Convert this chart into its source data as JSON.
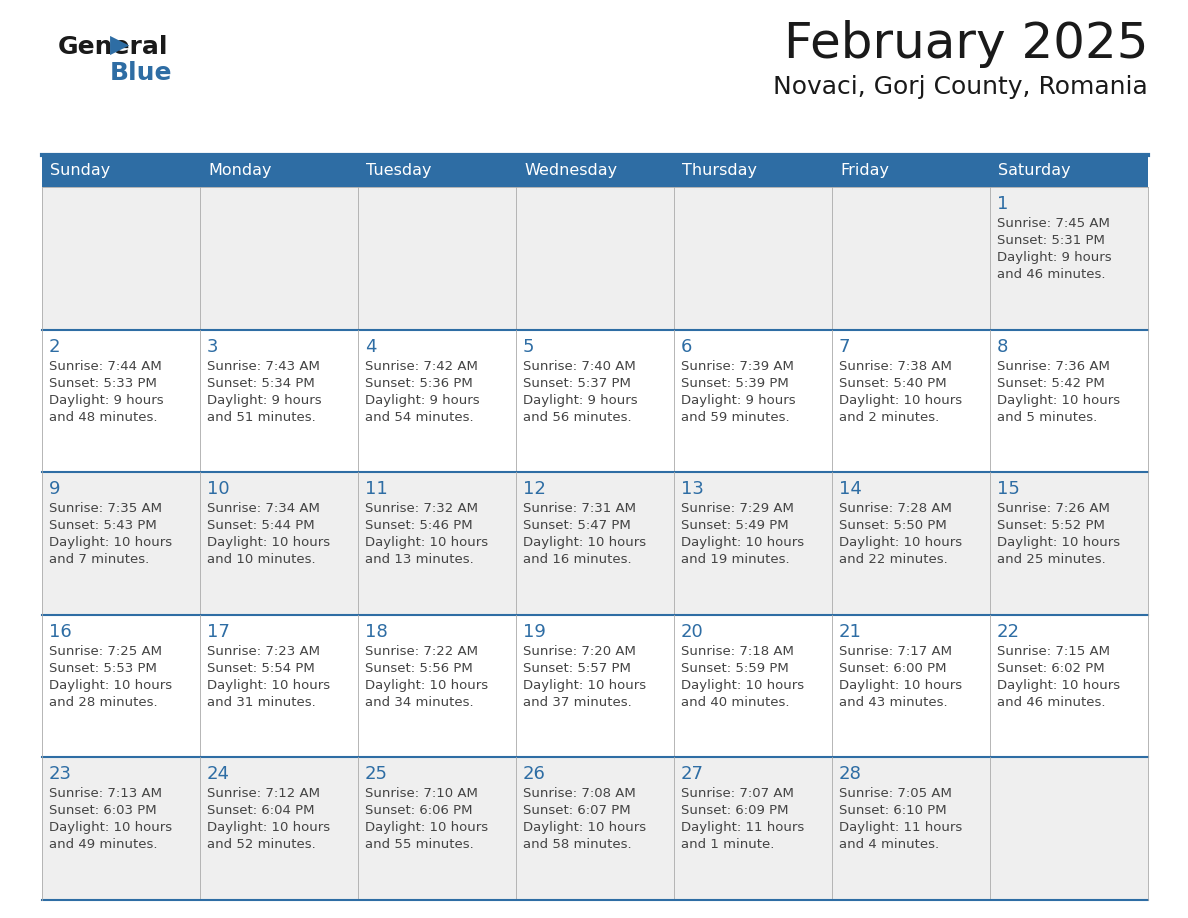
{
  "title": "February 2025",
  "subtitle": "Novaci, Gorj County, Romania",
  "days_of_week": [
    "Sunday",
    "Monday",
    "Tuesday",
    "Wednesday",
    "Thursday",
    "Friday",
    "Saturday"
  ],
  "header_bg": "#2E6DA4",
  "header_text": "#FFFFFF",
  "row_bg_odd": "#EFEFEF",
  "row_bg_even": "#FFFFFF",
  "cell_border_color": "#AAAAAA",
  "row_divider_color": "#2E6DA4",
  "day_number_color": "#2E6DA4",
  "info_text_color": "#444444",
  "title_color": "#1a1a1a",
  "subtitle_color": "#1a1a1a",
  "calendar_data": [
    [
      null,
      null,
      null,
      null,
      null,
      null,
      {
        "day": "1",
        "sunrise": "7:45 AM",
        "sunset": "5:31 PM",
        "daylight_line1": "Daylight: 9 hours",
        "daylight_line2": "and 46 minutes."
      }
    ],
    [
      {
        "day": "2",
        "sunrise": "7:44 AM",
        "sunset": "5:33 PM",
        "daylight_line1": "Daylight: 9 hours",
        "daylight_line2": "and 48 minutes."
      },
      {
        "day": "3",
        "sunrise": "7:43 AM",
        "sunset": "5:34 PM",
        "daylight_line1": "Daylight: 9 hours",
        "daylight_line2": "and 51 minutes."
      },
      {
        "day": "4",
        "sunrise": "7:42 AM",
        "sunset": "5:36 PM",
        "daylight_line1": "Daylight: 9 hours",
        "daylight_line2": "and 54 minutes."
      },
      {
        "day": "5",
        "sunrise": "7:40 AM",
        "sunset": "5:37 PM",
        "daylight_line1": "Daylight: 9 hours",
        "daylight_line2": "and 56 minutes."
      },
      {
        "day": "6",
        "sunrise": "7:39 AM",
        "sunset": "5:39 PM",
        "daylight_line1": "Daylight: 9 hours",
        "daylight_line2": "and 59 minutes."
      },
      {
        "day": "7",
        "sunrise": "7:38 AM",
        "sunset": "5:40 PM",
        "daylight_line1": "Daylight: 10 hours",
        "daylight_line2": "and 2 minutes."
      },
      {
        "day": "8",
        "sunrise": "7:36 AM",
        "sunset": "5:42 PM",
        "daylight_line1": "Daylight: 10 hours",
        "daylight_line2": "and 5 minutes."
      }
    ],
    [
      {
        "day": "9",
        "sunrise": "7:35 AM",
        "sunset": "5:43 PM",
        "daylight_line1": "Daylight: 10 hours",
        "daylight_line2": "and 7 minutes."
      },
      {
        "day": "10",
        "sunrise": "7:34 AM",
        "sunset": "5:44 PM",
        "daylight_line1": "Daylight: 10 hours",
        "daylight_line2": "and 10 minutes."
      },
      {
        "day": "11",
        "sunrise": "7:32 AM",
        "sunset": "5:46 PM",
        "daylight_line1": "Daylight: 10 hours",
        "daylight_line2": "and 13 minutes."
      },
      {
        "day": "12",
        "sunrise": "7:31 AM",
        "sunset": "5:47 PM",
        "daylight_line1": "Daylight: 10 hours",
        "daylight_line2": "and 16 minutes."
      },
      {
        "day": "13",
        "sunrise": "7:29 AM",
        "sunset": "5:49 PM",
        "daylight_line1": "Daylight: 10 hours",
        "daylight_line2": "and 19 minutes."
      },
      {
        "day": "14",
        "sunrise": "7:28 AM",
        "sunset": "5:50 PM",
        "daylight_line1": "Daylight: 10 hours",
        "daylight_line2": "and 22 minutes."
      },
      {
        "day": "15",
        "sunrise": "7:26 AM",
        "sunset": "5:52 PM",
        "daylight_line1": "Daylight: 10 hours",
        "daylight_line2": "and 25 minutes."
      }
    ],
    [
      {
        "day": "16",
        "sunrise": "7:25 AM",
        "sunset": "5:53 PM",
        "daylight_line1": "Daylight: 10 hours",
        "daylight_line2": "and 28 minutes."
      },
      {
        "day": "17",
        "sunrise": "7:23 AM",
        "sunset": "5:54 PM",
        "daylight_line1": "Daylight: 10 hours",
        "daylight_line2": "and 31 minutes."
      },
      {
        "day": "18",
        "sunrise": "7:22 AM",
        "sunset": "5:56 PM",
        "daylight_line1": "Daylight: 10 hours",
        "daylight_line2": "and 34 minutes."
      },
      {
        "day": "19",
        "sunrise": "7:20 AM",
        "sunset": "5:57 PM",
        "daylight_line1": "Daylight: 10 hours",
        "daylight_line2": "and 37 minutes."
      },
      {
        "day": "20",
        "sunrise": "7:18 AM",
        "sunset": "5:59 PM",
        "daylight_line1": "Daylight: 10 hours",
        "daylight_line2": "and 40 minutes."
      },
      {
        "day": "21",
        "sunrise": "7:17 AM",
        "sunset": "6:00 PM",
        "daylight_line1": "Daylight: 10 hours",
        "daylight_line2": "and 43 minutes."
      },
      {
        "day": "22",
        "sunrise": "7:15 AM",
        "sunset": "6:02 PM",
        "daylight_line1": "Daylight: 10 hours",
        "daylight_line2": "and 46 minutes."
      }
    ],
    [
      {
        "day": "23",
        "sunrise": "7:13 AM",
        "sunset": "6:03 PM",
        "daylight_line1": "Daylight: 10 hours",
        "daylight_line2": "and 49 minutes."
      },
      {
        "day": "24",
        "sunrise": "7:12 AM",
        "sunset": "6:04 PM",
        "daylight_line1": "Daylight: 10 hours",
        "daylight_line2": "and 52 minutes."
      },
      {
        "day": "25",
        "sunrise": "7:10 AM",
        "sunset": "6:06 PM",
        "daylight_line1": "Daylight: 10 hours",
        "daylight_line2": "and 55 minutes."
      },
      {
        "day": "26",
        "sunrise": "7:08 AM",
        "sunset": "6:07 PM",
        "daylight_line1": "Daylight: 10 hours",
        "daylight_line2": "and 58 minutes."
      },
      {
        "day": "27",
        "sunrise": "7:07 AM",
        "sunset": "6:09 PM",
        "daylight_line1": "Daylight: 11 hours",
        "daylight_line2": "and 1 minute."
      },
      {
        "day": "28",
        "sunrise": "7:05 AM",
        "sunset": "6:10 PM",
        "daylight_line1": "Daylight: 11 hours",
        "daylight_line2": "and 4 minutes."
      },
      null
    ]
  ]
}
